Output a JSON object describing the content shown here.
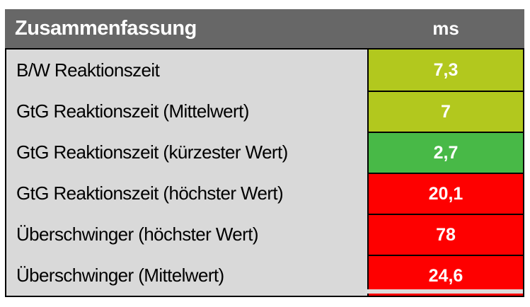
{
  "header": {
    "title": "Zusammenfassung",
    "unit": "ms"
  },
  "colors": {
    "header_bg": "#676767",
    "label_bg": "#d9d9d9",
    "border": "#000000",
    "header_text": "#ffffff",
    "label_text": "#000000",
    "value_text": "#ffffff",
    "yellow_green": "#b2c81e",
    "green": "#48b947",
    "red": "#fe0000"
  },
  "rows": [
    {
      "label": "B/W Reaktionszeit",
      "value": "7,3",
      "color": "#b2c81e"
    },
    {
      "label": "GtG Reaktionszeit (Mittelwert)",
      "value": "7",
      "color": "#b2c81e"
    },
    {
      "label": "GtG Reaktionszeit (kürzester Wert)",
      "value": "2,7",
      "color": "#48b947"
    },
    {
      "label": "GtG Reaktionszeit (höchster Wert)",
      "value": "20,1",
      "color": "#fe0000"
    },
    {
      "label": "Überschwinger (höchster Wert)",
      "value": "78",
      "color": "#fe0000"
    },
    {
      "label": "Überschwinger (Mittelwert)",
      "value": "24,6",
      "color": "#fe0000"
    }
  ],
  "chart_data": {
    "type": "table",
    "title": "Zusammenfassung",
    "unit": "ms",
    "columns": [
      "Zusammenfassung",
      "ms"
    ],
    "rows": [
      [
        "B/W Reaktionszeit",
        7.3
      ],
      [
        "GtG Reaktionszeit (Mittelwert)",
        7
      ],
      [
        "GtG Reaktionszeit (kürzester Wert)",
        2.7
      ],
      [
        "GtG Reaktionszeit (höchster Wert)",
        20.1
      ],
      [
        "Überschwinger (höchster Wert)",
        78
      ],
      [
        "Überschwinger (Mittelwert)",
        24.6
      ]
    ],
    "value_cell_colors": [
      "#b2c81e",
      "#b2c81e",
      "#48b947",
      "#fe0000",
      "#fe0000",
      "#fe0000"
    ],
    "color_semantics": {
      "#b2c81e": "good",
      "#48b947": "very-good",
      "#fe0000": "bad"
    }
  }
}
